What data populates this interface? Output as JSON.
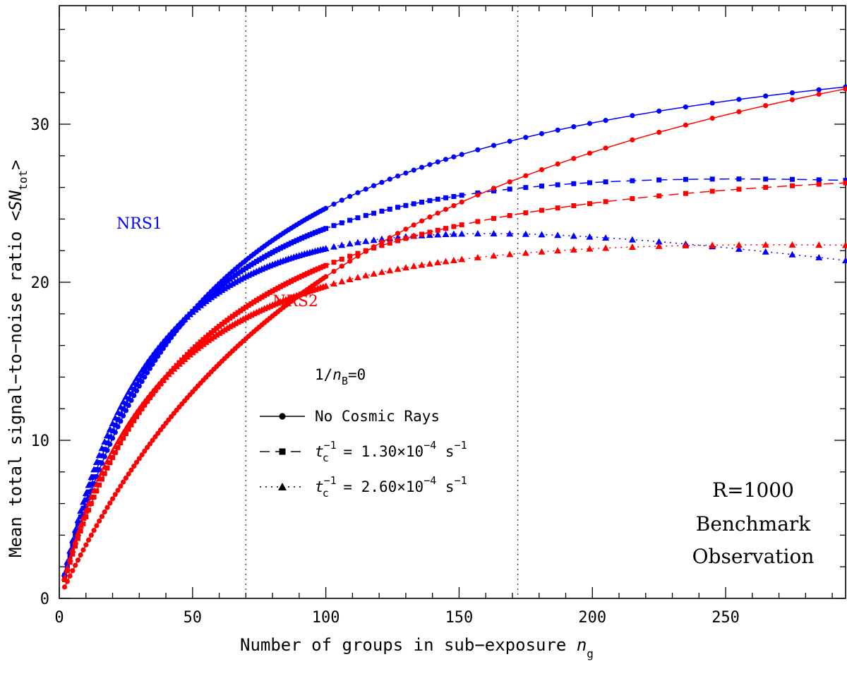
{
  "chart_data": {
    "type": "line",
    "title": "",
    "xlabel": {
      "main": "Number of groups in sub−exposure ",
      "var": "n",
      "sub": "g"
    },
    "ylabel": {
      "main": "Mean total signal−to−noise ratio <",
      "var": "SN",
      "sub": "tot",
      "close": ">"
    },
    "xlim": [
      0,
      295
    ],
    "ylim": [
      0,
      37.5
    ],
    "x_ticks": [
      0,
      50,
      100,
      150,
      200,
      250
    ],
    "x_tick_labels": [
      "0",
      "50",
      "100",
      "150",
      "200",
      "250"
    ],
    "y_ticks": [
      0,
      10,
      20,
      30
    ],
    "y_tick_labels": [
      "0",
      "10",
      "20",
      "30"
    ],
    "vlines": [
      70,
      172
    ],
    "curve_model": "S(n) = A * n / (n + B) * exp(-C * n)",
    "series": [
      {
        "name": "NRS1 No Cosmic Rays",
        "detector": "NRS1",
        "case": "No Cosmic Rays",
        "color": "#0000ff",
        "marker": "circle",
        "linestyle": "solid",
        "A": 38.5,
        "B": 56,
        "C": 0
      },
      {
        "name": "NRS1 1.30e-4",
        "detector": "NRS1",
        "case": "tc1",
        "color": "#0000ff",
        "marker": "square",
        "linestyle": "dashed",
        "A": 37.3,
        "B": 49.5,
        "C": 0.00064
      },
      {
        "name": "NRS1 2.60e-4",
        "detector": "NRS1",
        "case": "tc2",
        "color": "#0000ff",
        "marker": "triangle",
        "linestyle": "dotted",
        "A": 36.5,
        "B": 44.2,
        "C": 0.00134
      },
      {
        "name": "NRS2 No Cosmic Rays",
        "detector": "NRS2",
        "case": "No Cosmic Rays",
        "color": "#ff0000",
        "marker": "circle",
        "linestyle": "solid",
        "A": 46,
        "B": 126,
        "C": 0
      },
      {
        "name": "NRS2 1.30e-4",
        "detector": "NRS2",
        "case": "tc1",
        "color": "#ff0000",
        "marker": "square",
        "linestyle": "dashed",
        "A": 33.2,
        "B": 54.2,
        "C": 0.00022
      },
      {
        "name": "NRS2 2.60e-4",
        "detector": "NRS2",
        "case": "tc2",
        "color": "#ff0000",
        "marker": "triangle",
        "linestyle": "dotted",
        "A": 29.9,
        "B": 43.6,
        "C": 0.00052
      }
    ],
    "legend": {
      "title": {
        "prefix": "1/",
        "var": "n",
        "sub": "B",
        "suffix": "=0"
      },
      "entries": [
        {
          "marker": "circle",
          "linestyle": "solid",
          "label": "No Cosmic Rays"
        },
        {
          "marker": "square",
          "linestyle": "dashed",
          "var": "t",
          "sub": "c",
          "sup": "−1",
          "text": " = 1.30×10",
          "exp": "−4",
          "unit": " s",
          "unit_sup": "−1"
        },
        {
          "marker": "triangle",
          "linestyle": "dotted",
          "var": "t",
          "sub": "c",
          "sup": "−1",
          "text": " = 2.60×10",
          "exp": "−4",
          "unit": " s",
          "unit_sup": "−1"
        }
      ]
    },
    "annotations": {
      "nrs1": {
        "label": "NRS1",
        "color": "#0000ff"
      },
      "nrs2": {
        "label": "NRS2",
        "color": "#ff0000"
      },
      "note": [
        "R=1000",
        "Benchmark",
        "Observation"
      ]
    }
  }
}
